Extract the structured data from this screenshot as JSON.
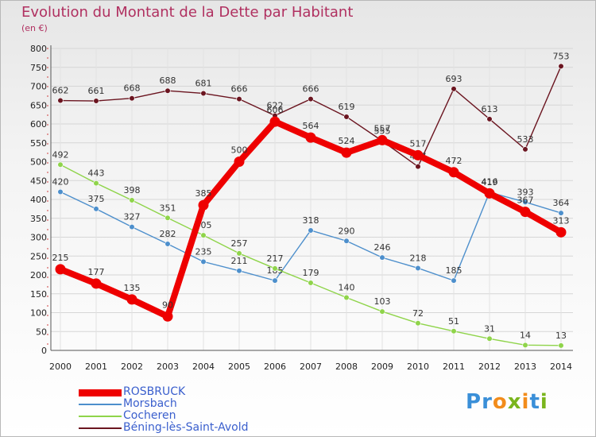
{
  "title": "Evolution du Montant de la Dette par Habitant",
  "unit_note": "(en €)",
  "logo": {
    "text": "Proxiti",
    "letters": [
      {
        "ch": "P",
        "color": "#3a8fd8"
      },
      {
        "ch": "r",
        "color": "#3a8fd8"
      },
      {
        "ch": "o",
        "color": "#f28c1b"
      },
      {
        "ch": "x",
        "color": "#7ab51d"
      },
      {
        "ch": "i",
        "color": "#f28c1b"
      },
      {
        "ch": "t",
        "color": "#3a8fd8"
      },
      {
        "ch": "i",
        "color": "#7ab51d"
      }
    ]
  },
  "chart_data": {
    "type": "line",
    "x": [
      "2000",
      "2001",
      "2002",
      "2003",
      "2004",
      "2005",
      "2006",
      "2007",
      "2008",
      "2009",
      "2010",
      "2011",
      "2012",
      "2013",
      "2014"
    ],
    "ylim": [
      0,
      800
    ],
    "yticks": [
      0,
      50,
      100,
      150,
      200,
      250,
      300,
      350,
      400,
      450,
      500,
      550,
      600,
      650,
      700,
      750,
      800
    ],
    "grid": true,
    "legend_position": "bottom-left",
    "series": [
      {
        "name": "Béning-lès-Saint-Avold",
        "color": "#6b1520",
        "values": [
          662,
          661,
          668,
          688,
          681,
          666,
          622,
          666,
          619,
          555,
          487,
          693,
          613,
          533,
          753
        ],
        "labels": [
          "662",
          "661",
          "668",
          "688",
          "681",
          "666",
          "622",
          "666",
          "619",
          "555",
          "487",
          "693",
          "613",
          "533",
          "753"
        ]
      },
      {
        "name": "Morsbach",
        "color": "#4d8fcc",
        "values": [
          420,
          375,
          327,
          282,
          235,
          211,
          185,
          318,
          290,
          246,
          218,
          185,
          419,
          393,
          364
        ],
        "labels": [
          "420",
          "375",
          "327",
          "282",
          "235",
          "211",
          "185",
          "318",
          "290",
          "246",
          "218",
          "185",
          "419",
          "393",
          "364"
        ]
      },
      {
        "name": "Cocheren",
        "color": "#8fd44a",
        "values": [
          492,
          443,
          398,
          351,
          305,
          257,
          217,
          179,
          140,
          103,
          72,
          51,
          31,
          14,
          13
        ],
        "labels": [
          "492",
          "443",
          "398",
          "351",
          "305",
          "257",
          "217",
          "179",
          "140",
          "103",
          "72",
          "51",
          "31",
          "14",
          "13"
        ]
      },
      {
        "name": "ROSBRUCK",
        "color": "#ee0000",
        "values": [
          215,
          177,
          135,
          90,
          385,
          500,
          606,
          564,
          524,
          557,
          517,
          472,
          416,
          367,
          313
        ],
        "labels": [
          "215",
          "177",
          "135",
          "90",
          "385",
          "500",
          "606",
          "564",
          "524",
          "557",
          "517",
          "472",
          "416",
          "367",
          "313"
        ]
      }
    ]
  },
  "legend": [
    {
      "name": "ROSBRUCK",
      "color": "#ee0000",
      "thick": true
    },
    {
      "name": "Morsbach",
      "color": "#4d8fcc",
      "thick": false
    },
    {
      "name": "Cocheren",
      "color": "#8fd44a",
      "thick": false
    },
    {
      "name": "Béning-lès-Saint-Avold",
      "color": "#6b1520",
      "thick": false
    }
  ]
}
